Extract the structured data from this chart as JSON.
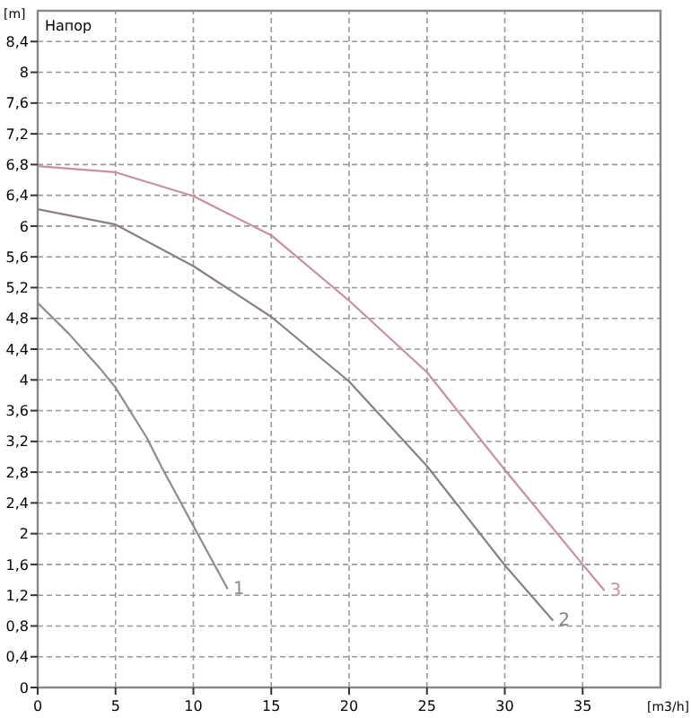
{
  "chart_data": {
    "type": "line",
    "title": "Напор",
    "ylabel": "[m]",
    "xlabel": "[m3/h]",
    "xlim": [
      0,
      40
    ],
    "xticks": [
      0,
      5,
      10,
      15,
      20,
      25,
      30,
      35
    ],
    "ylim": [
      0,
      8.8
    ],
    "yticks": [
      0,
      {
        "value": 0.4,
        "label": "0,4"
      },
      {
        "value": 0.8,
        "label": "0,8"
      },
      {
        "value": 1.2,
        "label": "1,2"
      },
      {
        "value": 1.6,
        "label": "1,6"
      },
      2,
      {
        "value": 2.4,
        "label": "2,4"
      },
      {
        "value": 2.8,
        "label": "2,8"
      },
      {
        "value": 3.2,
        "label": "3,2"
      },
      {
        "value": 3.6,
        "label": "3,6"
      },
      4,
      {
        "value": 4.4,
        "label": "4,4"
      },
      {
        "value": 4.8,
        "label": "4,8"
      },
      {
        "value": 5.2,
        "label": "5,2"
      },
      {
        "value": 5.6,
        "label": "5,6"
      },
      6,
      {
        "value": 6.4,
        "label": "6,4"
      },
      {
        "value": 6.8,
        "label": "6,8"
      },
      {
        "value": 7.2,
        "label": "7,2"
      },
      {
        "value": 7.6,
        "label": "7,6"
      },
      8,
      {
        "value": 8.4,
        "label": "8,4"
      }
    ],
    "grid": true,
    "line_style": "solid",
    "marker": "none",
    "series": [
      {
        "name": "1",
        "color": "#8c8c8c",
        "x": [
          0,
          2,
          4,
          5,
          7,
          8,
          10,
          12.2
        ],
        "values": [
          5.0,
          4.6,
          4.15,
          3.9,
          3.25,
          2.85,
          2.1,
          1.28
        ]
      },
      {
        "name": "2",
        "color": "#8a7e88",
        "x": [
          0,
          5,
          10,
          15,
          20,
          25,
          30,
          33.1
        ],
        "values": [
          6.22,
          6.02,
          5.48,
          4.82,
          3.98,
          2.88,
          1.59,
          0.87
        ]
      },
      {
        "name": "3",
        "color": "#c98f9b",
        "x": [
          0,
          5,
          10,
          15,
          20,
          25,
          30,
          35,
          36.4
        ],
        "values": [
          6.78,
          6.7,
          6.39,
          5.88,
          5.03,
          4.1,
          2.83,
          1.6,
          1.26
        ]
      }
    ]
  }
}
